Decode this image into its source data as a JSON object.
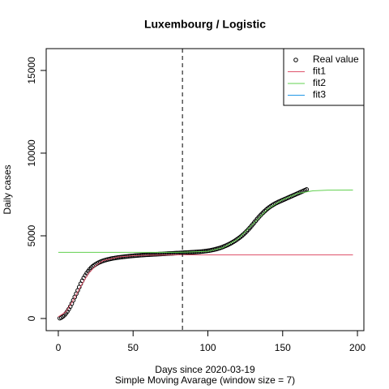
{
  "chart_data": {
    "type": "scatter",
    "title": "Luxembourg / Logistic",
    "xlabel": "Days since 2020-03-19",
    "subtitle": "Simple Moving Avarage (window size = 7)",
    "ylabel": "Daily cases",
    "xlim": [
      -8.1,
      204.3
    ],
    "ylim": [
      -735,
      16320
    ],
    "xticks": [
      0,
      50,
      100,
      150,
      200
    ],
    "yticks": [
      0,
      5000,
      10000,
      15000
    ],
    "vline": 83,
    "legend": "topright",
    "series": [
      {
        "name": "Real value",
        "color": "#000000",
        "kind": "points",
        "x": [
          1,
          2,
          3,
          4,
          5,
          6,
          7,
          8,
          9,
          10,
          11,
          12,
          13,
          14,
          15,
          16,
          17,
          18,
          19,
          20,
          21,
          22,
          23,
          24,
          25,
          26,
          27,
          28,
          29,
          30,
          31,
          32,
          33,
          34,
          35,
          36,
          37,
          38,
          39,
          40,
          41,
          42,
          43,
          44,
          45,
          46,
          47,
          48,
          49,
          50,
          51,
          52,
          53,
          54,
          55,
          56,
          57,
          58,
          59,
          60,
          61,
          62,
          63,
          64,
          65,
          66,
          67,
          68,
          69,
          70,
          71,
          72,
          73,
          74,
          75,
          76,
          77,
          78,
          79,
          80,
          81,
          82,
          83,
          84,
          85,
          86,
          87,
          88,
          89,
          90,
          91,
          92,
          93,
          94,
          95,
          96,
          97,
          98,
          99,
          100,
          101,
          102,
          103,
          104,
          105,
          106,
          107,
          108,
          109,
          110,
          111,
          112,
          113,
          114,
          115,
          116,
          117,
          118,
          119,
          120,
          121,
          122,
          123,
          124,
          125,
          126,
          127,
          128,
          129,
          130,
          131,
          132,
          133,
          134,
          135,
          136,
          137,
          138,
          139,
          140,
          141,
          142,
          143,
          144,
          145,
          146,
          147,
          148,
          149,
          150,
          151,
          152,
          153,
          154,
          155,
          156,
          157,
          158,
          159,
          160,
          161,
          162,
          163,
          164,
          165,
          166
        ],
        "values": [
          20,
          60,
          120,
          200,
          300,
          420,
          560,
          720,
          900,
          1100,
          1300,
          1500,
          1700,
          1900,
          2100,
          2280,
          2450,
          2600,
          2740,
          2860,
          2970,
          3070,
          3150,
          3220,
          3280,
          3330,
          3380,
          3420,
          3460,
          3490,
          3520,
          3545,
          3570,
          3590,
          3610,
          3630,
          3645,
          3660,
          3675,
          3690,
          3700,
          3712,
          3724,
          3735,
          3745,
          3755,
          3765,
          3775,
          3784,
          3792,
          3800,
          3808,
          3815,
          3822,
          3829,
          3835,
          3841,
          3847,
          3853,
          3858,
          3863,
          3868,
          3873,
          3878,
          3883,
          3888,
          3893,
          3898,
          3903,
          3908,
          3913,
          3918,
          3923,
          3928,
          3933,
          3938,
          3943,
          3948,
          3953,
          3958,
          3963,
          3968,
          3973,
          3978,
          3983,
          3988,
          3993,
          3998,
          4003,
          4008,
          4014,
          4020,
          4027,
          4034,
          4042,
          4050,
          4060,
          4070,
          4082,
          4095,
          4110,
          4126,
          4144,
          4164,
          4186,
          4210,
          4236,
          4264,
          4295,
          4328,
          4364,
          4402,
          4443,
          4487,
          4534,
          4584,
          4637,
          4693,
          4752,
          4814,
          4880,
          4950,
          5025,
          5105,
          5190,
          5280,
          5375,
          5475,
          5580,
          5690,
          5800,
          5910,
          6020,
          6125,
          6225,
          6320,
          6410,
          6495,
          6575,
          6650,
          6720,
          6785,
          6845,
          6900,
          6950,
          6995,
          7040,
          7080,
          7120,
          7160,
          7200,
          7240,
          7280,
          7320,
          7360,
          7400,
          7440,
          7480,
          7520,
          7560,
          7600,
          7640,
          7680,
          7720,
          7760,
          7800
        ]
      },
      {
        "name": "fit1",
        "color": "#DF536B",
        "kind": "line",
        "x": [
          0,
          5,
          10,
          15,
          20,
          25,
          30,
          40,
          50,
          60,
          80,
          100,
          197
        ],
        "values": [
          100,
          400,
          1100,
          1950,
          2700,
          3200,
          3500,
          3720,
          3800,
          3830,
          3845,
          3850,
          3850
        ]
      },
      {
        "name": "fit2",
        "color": "#61D04F",
        "kind": "line",
        "x": [
          0,
          80,
          100,
          110,
          120,
          130,
          140,
          150,
          160,
          170,
          180,
          197
        ],
        "values": [
          4000,
          4000,
          4060,
          4280,
          4800,
          5700,
          6620,
          7180,
          7560,
          7720,
          7760,
          7770
        ]
      },
      {
        "name": "fit3",
        "color": "#2297E6",
        "kind": "line",
        "x": [],
        "values": []
      }
    ]
  }
}
